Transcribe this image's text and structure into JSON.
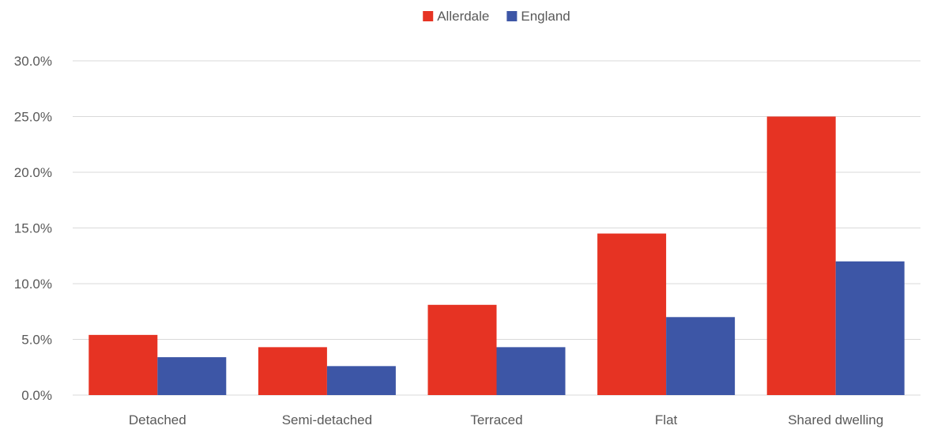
{
  "chart_data": {
    "type": "bar",
    "title": "",
    "xlabel": "",
    "ylabel": "",
    "categories": [
      "Detached",
      "Semi-detached",
      "Terraced",
      "Flat",
      "Shared dwelling"
    ],
    "series": [
      {
        "name": "Allerdale",
        "color": "#e63323",
        "values": [
          5.4,
          4.3,
          8.1,
          14.5,
          25.0
        ]
      },
      {
        "name": "England",
        "color": "#3d56a6",
        "values": [
          3.4,
          2.6,
          4.3,
          7.0,
          12.0
        ]
      }
    ],
    "ylim": [
      0,
      30
    ],
    "yticks": [
      0,
      5,
      10,
      15,
      20,
      25,
      30
    ],
    "ytick_labels": [
      "0.0%",
      "5.0%",
      "10.0%",
      "15.0%",
      "20.0%",
      "25.0%",
      "30.0%"
    ],
    "y_unit": "percent",
    "grid": true,
    "legend_position": "top-center",
    "colors": {
      "gridline": "#d9d9d9",
      "axis_text": "#595959"
    }
  }
}
